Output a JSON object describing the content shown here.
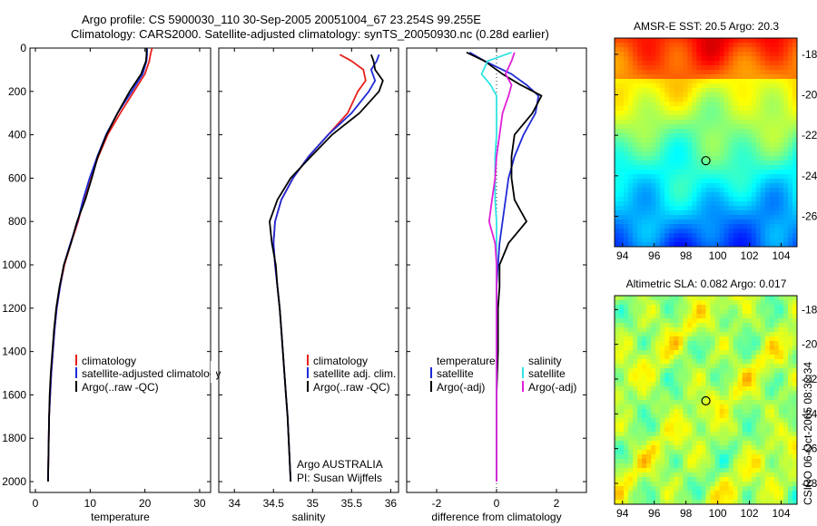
{
  "header": {
    "title_line1": "Argo profile: CS 5900030_110 30-Sep-2005 20051004_67 23.254S 99.255E",
    "title_line2": "Climatology: CARS2000. Satellite-adjusted climatology: synTS_20050930.nc (0.28d earlier)"
  },
  "side_label": "CSIRO 06-Oct-2005 08:32:34",
  "argo_note": {
    "line1": "Argo AUSTRALIA",
    "line2": "PI: Susan Wijffels"
  },
  "colors": {
    "climatology": "#e8201c",
    "satellite": "#1e2bd6",
    "argo": "#000000",
    "satellite_salinity": "#2fe3e3",
    "argo_adj_salinity": "#e020d8",
    "zero_line": "#333333"
  },
  "chart_data": [
    {
      "type": "line",
      "id": "temperature",
      "xlabel": "temperature",
      "ylabel": "",
      "xlim": [
        -1,
        32
      ],
      "ylim": [
        2050,
        0
      ],
      "xticks": [
        0,
        10,
        20,
        30
      ],
      "yticks": [
        0,
        200,
        400,
        600,
        800,
        1000,
        1200,
        1400,
        1600,
        1800,
        2000
      ],
      "legend": [
        "climatology",
        "satellite-adjusted climatology",
        "Argo(..raw -QC)"
      ],
      "series": [
        {
          "name": "climatology",
          "color": "#e8201c",
          "x": [
            21.3,
            21.0,
            20.8,
            20.0,
            18.0,
            15.5,
            13.2,
            11.5,
            10.0,
            8.8,
            7.8,
            6.5,
            5.3,
            4.5,
            3.9,
            3.5,
            3.2,
            2.9,
            2.7,
            2.5,
            2.4,
            2.3
          ],
          "y": [
            0,
            30,
            60,
            120,
            200,
            300,
            400,
            500,
            600,
            700,
            800,
            900,
            1000,
            1100,
            1200,
            1300,
            1400,
            1500,
            1600,
            1700,
            1850,
            2000
          ]
        },
        {
          "name": "satellite-adjusted climatology",
          "color": "#1e2bd6",
          "x": [
            20.4,
            20.4,
            20.3,
            19.6,
            17.6,
            15.0,
            12.9,
            11.3,
            9.9,
            8.7,
            7.7,
            6.4,
            5.2,
            4.5,
            3.9,
            3.5,
            3.2,
            2.9,
            2.7,
            2.5,
            2.4,
            2.3
          ],
          "y": [
            0,
            30,
            60,
            120,
            200,
            300,
            400,
            500,
            600,
            700,
            800,
            900,
            1000,
            1100,
            1200,
            1300,
            1400,
            1500,
            1600,
            1700,
            1850,
            2000
          ]
        },
        {
          "name": "Argo(..raw -QC)",
          "color": "#000000",
          "x": [
            20.3,
            20.3,
            20.2,
            19.3,
            17.2,
            15.0,
            13.0,
            11.4,
            10.3,
            9.1,
            7.6,
            6.5,
            5.2,
            4.4,
            3.8,
            3.4,
            3.1,
            2.8,
            2.6,
            2.5,
            2.4,
            2.3
          ],
          "y": [
            0,
            30,
            60,
            120,
            200,
            300,
            400,
            500,
            600,
            700,
            800,
            900,
            1000,
            1100,
            1200,
            1300,
            1400,
            1500,
            1600,
            1700,
            1850,
            2000
          ]
        }
      ]
    },
    {
      "type": "line",
      "id": "salinity",
      "xlabel": "salinity",
      "ylabel": "",
      "xlim": [
        33.8,
        36.1
      ],
      "ylim": [
        2050,
        0
      ],
      "xticks": [
        34,
        34.5,
        35,
        35.5,
        36
      ],
      "xtick_labels": [
        "34",
        "34.5",
        "35",
        "35.5",
        "36"
      ],
      "yticks": [
        0,
        200,
        400,
        600,
        800,
        1000,
        1200,
        1400,
        1600,
        1800,
        2000
      ],
      "legend": [
        "climatology",
        "satellite adj. clim.",
        "Argo(..raw -QC)"
      ],
      "series": [
        {
          "name": "climatology",
          "color": "#e8201c",
          "x": [
            35.35,
            35.5,
            35.65,
            35.68,
            35.58,
            35.45,
            35.2,
            34.95,
            34.75,
            34.6,
            34.52,
            34.5,
            34.52,
            34.55,
            34.58,
            34.6,
            34.62,
            34.64,
            34.66,
            34.68,
            34.7,
            34.72
          ],
          "y": [
            30,
            60,
            100,
            150,
            200,
            300,
            400,
            500,
            600,
            700,
            800,
            900,
            1000,
            1100,
            1200,
            1300,
            1400,
            1500,
            1600,
            1700,
            1850,
            2000
          ]
        },
        {
          "name": "satellite adj. clim.",
          "color": "#1e2bd6",
          "x": [
            35.85,
            35.82,
            35.75,
            35.8,
            35.72,
            35.5,
            35.2,
            34.95,
            34.75,
            34.6,
            34.52,
            34.5,
            34.52,
            34.55,
            34.58,
            34.6,
            34.62,
            34.64,
            34.66,
            34.68,
            34.7,
            34.72
          ],
          "y": [
            30,
            60,
            100,
            150,
            200,
            300,
            400,
            500,
            600,
            700,
            800,
            900,
            1000,
            1100,
            1200,
            1300,
            1400,
            1500,
            1600,
            1700,
            1850,
            2000
          ]
        },
        {
          "name": "Argo(..raw -QC)",
          "color": "#000000",
          "x": [
            35.75,
            35.78,
            35.8,
            35.9,
            35.85,
            35.6,
            35.25,
            34.98,
            34.72,
            34.55,
            34.45,
            34.48,
            34.53,
            34.55,
            34.58,
            34.6,
            34.62,
            34.64,
            34.66,
            34.68,
            34.7,
            34.72
          ],
          "y": [
            30,
            60,
            100,
            150,
            200,
            300,
            400,
            500,
            600,
            700,
            800,
            900,
            1000,
            1100,
            1200,
            1300,
            1400,
            1500,
            1600,
            1700,
            1850,
            2000
          ]
        }
      ]
    },
    {
      "type": "line",
      "id": "difference",
      "xlabel": "difference from climatology",
      "ylabel": "",
      "xlim": [
        -3.0,
        3.0
      ],
      "ylim": [
        2050,
        0
      ],
      "xticks": [
        -2,
        0,
        2
      ],
      "yticks": [
        0,
        200,
        400,
        600,
        800,
        1000,
        1200,
        1400,
        1600,
        1800,
        2000
      ],
      "legend_temperature": [
        "temperature",
        "satellite",
        "Argo(-adj)"
      ],
      "legend_salinity": [
        "salinity",
        "satellite",
        "Argo(-adj)"
      ],
      "series": [
        {
          "name": "satellite (temperature)",
          "color": "#1e2bd6",
          "x": [
            -0.9,
            -0.4,
            0.5,
            1.0,
            1.4,
            1.3,
            0.9,
            0.6,
            0.4,
            0.3,
            0.2,
            0.1,
            0.05,
            0.0,
            0.0,
            0.0,
            0.0,
            0.0,
            0.0,
            0.0,
            0.0
          ],
          "y": [
            20,
            60,
            120,
            170,
            220,
            300,
            400,
            500,
            600,
            700,
            800,
            900,
            1000,
            1100,
            1200,
            1400,
            1600,
            1700,
            1800,
            1900,
            2000
          ]
        },
        {
          "name": "Argo(-adj) (temperature)",
          "color": "#000000",
          "x": [
            -1.0,
            -0.4,
            0.2,
            0.8,
            1.5,
            1.2,
            0.6,
            0.5,
            0.5,
            0.6,
            1.0,
            0.4,
            0.1,
            0.1,
            0.05,
            0.05,
            0.0,
            0.0,
            0.0,
            0.0,
            0.0
          ],
          "y": [
            20,
            60,
            120,
            170,
            220,
            300,
            400,
            500,
            600,
            700,
            800,
            900,
            1000,
            1100,
            1200,
            1400,
            1600,
            1700,
            1800,
            1900,
            2000
          ]
        },
        {
          "name": "satellite (salinity)",
          "color": "#2fe3e3",
          "x": [
            0.5,
            -0.3,
            -0.5,
            -0.2,
            0.0,
            0.0,
            0.0,
            -0.05,
            -0.05,
            -0.05,
            0.0,
            0.0,
            0.0,
            0.0,
            0.0,
            0.0,
            0.0,
            0.0,
            0.0,
            0.0,
            0.0
          ],
          "y": [
            20,
            60,
            120,
            170,
            220,
            300,
            400,
            500,
            600,
            700,
            800,
            900,
            1000,
            1100,
            1200,
            1400,
            1600,
            1700,
            1800,
            1900,
            2000
          ]
        },
        {
          "name": "Argo(-adj) (salinity)",
          "color": "#e020d8",
          "x": [
            0.6,
            0.5,
            0.3,
            0.5,
            0.4,
            0.2,
            0.1,
            0.0,
            -0.05,
            -0.15,
            -0.25,
            -0.05,
            0.0,
            0.0,
            0.0,
            0.0,
            0.0,
            0.0,
            0.0,
            0.0,
            0.0
          ],
          "y": [
            20,
            60,
            120,
            170,
            220,
            300,
            400,
            500,
            600,
            700,
            800,
            900,
            1000,
            1100,
            1200,
            1400,
            1600,
            1700,
            1800,
            1900,
            2000
          ]
        }
      ]
    },
    {
      "type": "heatmap",
      "id": "sst_map",
      "title": "AMSR-E SST: 20.5 Argo: 20.3",
      "xlim": [
        93.5,
        105
      ],
      "ylim": [
        -27.5,
        -17.2
      ],
      "xticks": [
        94,
        96,
        98,
        100,
        102,
        104
      ],
      "yticks": [
        -18,
        -20,
        -22,
        -24,
        -26,
        -28
      ],
      "profile_location": {
        "lon": 99.255,
        "lat": -23.254
      },
      "colormap": "jet"
    },
    {
      "type": "heatmap",
      "id": "sla_map",
      "title": "Altimetric SLA: 0.082 Argo: 0.017",
      "xlim": [
        93.5,
        105
      ],
      "ylim": [
        -29.2,
        -17.2
      ],
      "xticks": [
        94,
        96,
        98,
        100,
        102,
        104
      ],
      "yticks": [
        -18,
        -20,
        -22,
        -24,
        -26,
        -28
      ],
      "profile_location": {
        "lon": 99.255,
        "lat": -23.254
      },
      "colormap": "jet"
    }
  ]
}
